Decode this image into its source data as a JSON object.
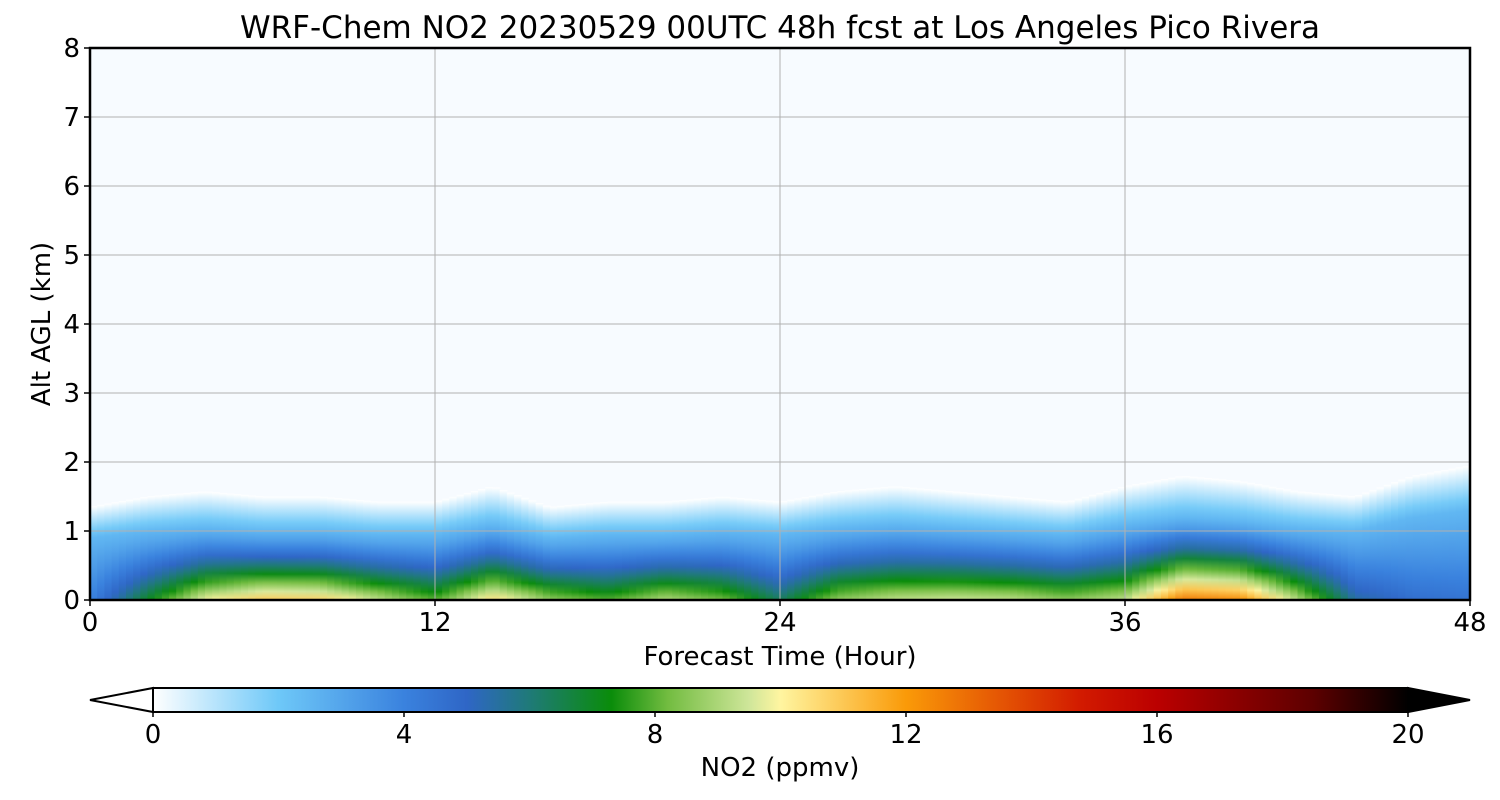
{
  "chart_data": {
    "type": "heatmap",
    "title": "WRF-Chem NO2  20230529 00UTC 48h fcst at Los Angeles Pico Rivera",
    "xlabel": "Forecast Time (Hour)",
    "ylabel": "Alt AGL (km)",
    "xlim": [
      0,
      48
    ],
    "ylim": [
      0,
      8
    ],
    "xticks": [
      "0",
      "12",
      "24",
      "36",
      "48"
    ],
    "yticks": [
      "0",
      "1",
      "2",
      "3",
      "4",
      "5",
      "6",
      "7",
      "8"
    ],
    "grid": true,
    "colorbar": {
      "label": "NO2  (ppmv)",
      "range": [
        0,
        20
      ],
      "ticks": [
        "0",
        "4",
        "8",
        "12",
        "16",
        "20"
      ],
      "extend": "both",
      "stops": [
        {
          "value": 0,
          "color": "#ffffff"
        },
        {
          "value": 2,
          "color": "#6ec8f8"
        },
        {
          "value": 4,
          "color": "#3a82de"
        },
        {
          "value": 5,
          "color": "#2f66c6"
        },
        {
          "value": 6,
          "color": "#1f7a78"
        },
        {
          "value": 7.3,
          "color": "#0a8c0a"
        },
        {
          "value": 8.2,
          "color": "#72bc40"
        },
        {
          "value": 9.5,
          "color": "#cfe69a"
        },
        {
          "value": 10,
          "color": "#fff5a0"
        },
        {
          "value": 12,
          "color": "#fa9a08"
        },
        {
          "value": 14.8,
          "color": "#d21a00"
        },
        {
          "value": 16,
          "color": "#bb0000"
        },
        {
          "value": 18.5,
          "color": "#5c0000"
        },
        {
          "value": 20,
          "color": "#000000"
        }
      ]
    },
    "profile_times": [
      0,
      2,
      4,
      6,
      8,
      10,
      12,
      14,
      16,
      18,
      20,
      22,
      24,
      26,
      28,
      30,
      32,
      34,
      36,
      38,
      40,
      42,
      44,
      46,
      48
    ],
    "profile_surface_no2": [
      2.5,
      5.5,
      8.3,
      9.4,
      9.2,
      7.8,
      6.5,
      8.9,
      7.2,
      6.4,
      7.6,
      6.8,
      4.8,
      7.2,
      7.8,
      8.0,
      7.8,
      7.2,
      7.8,
      11.2,
      10.8,
      7.6,
      4.0,
      3.2,
      3.0
    ],
    "profile_mixing_height_km": [
      0.9,
      1.0,
      1.05,
      1.0,
      1.0,
      0.95,
      0.95,
      1.1,
      0.9,
      0.95,
      0.95,
      1.0,
      0.95,
      1.05,
      1.1,
      1.05,
      1.0,
      0.95,
      1.1,
      1.2,
      1.15,
      1.05,
      1.0,
      1.2,
      1.3
    ]
  }
}
